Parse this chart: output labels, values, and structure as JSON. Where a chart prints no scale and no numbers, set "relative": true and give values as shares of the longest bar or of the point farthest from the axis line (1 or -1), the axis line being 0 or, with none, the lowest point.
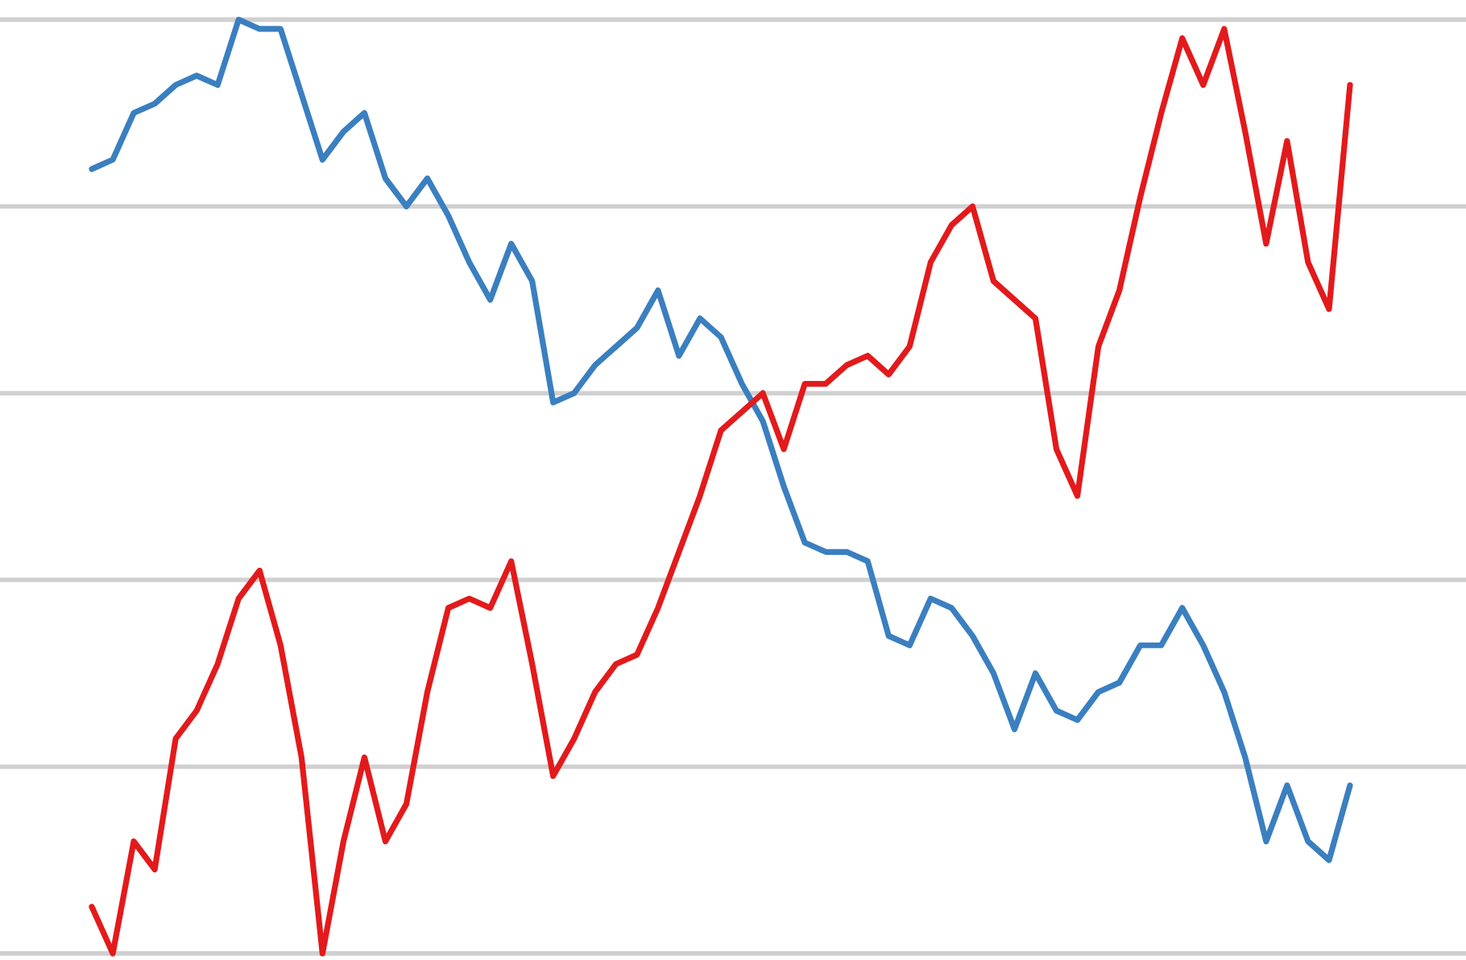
{
  "chart_data": {
    "type": "line",
    "relative": true,
    "grid": "y",
    "legend": false,
    "categories": [
      null,
      null,
      null,
      null,
      null,
      null,
      null,
      null,
      null,
      null,
      null,
      null,
      null,
      null,
      null,
      null,
      null,
      null,
      null,
      null,
      null,
      null,
      null,
      null,
      null,
      null,
      null,
      null,
      null,
      null,
      null,
      null,
      null,
      null,
      null,
      null,
      null,
      null,
      null,
      null,
      null,
      null,
      null,
      null,
      null,
      null,
      null,
      null,
      null,
      null,
      null,
      null,
      null,
      null,
      null,
      null,
      null,
      null,
      null,
      null,
      null
    ],
    "series": [
      {
        "color": "#3a7fc0",
        "values": [
          0.84,
          0.85,
          0.9,
          0.91,
          0.93,
          0.94,
          0.93,
          1.0,
          0.99,
          0.99,
          0.92,
          0.85,
          0.88,
          0.9,
          0.83,
          0.8,
          0.83,
          0.79,
          0.74,
          0.7,
          0.76,
          0.72,
          0.59,
          0.6,
          0.63,
          0.65,
          0.67,
          0.71,
          0.64,
          0.68,
          0.66,
          0.61,
          0.57,
          0.5,
          0.44,
          0.43,
          0.43,
          0.42,
          0.34,
          0.33,
          0.38,
          0.37,
          0.34,
          0.3,
          0.24,
          0.3,
          0.26,
          0.25,
          0.28,
          0.29,
          0.33,
          0.33,
          0.37,
          0.33,
          0.28,
          0.21,
          0.12,
          0.18,
          0.12,
          0.1,
          0.18
        ]
      },
      {
        "color": "#e31a1c",
        "values": [
          0.05,
          0.0,
          0.12,
          0.09,
          0.23,
          0.26,
          0.31,
          0.38,
          0.41,
          0.33,
          0.21,
          0.0,
          0.12,
          0.21,
          0.12,
          0.16,
          0.28,
          0.37,
          0.38,
          0.37,
          0.42,
          0.31,
          0.19,
          0.23,
          0.28,
          0.31,
          0.32,
          0.37,
          0.43,
          0.49,
          0.56,
          0.58,
          0.6,
          0.54,
          0.61,
          0.61,
          0.63,
          0.64,
          0.62,
          0.65,
          0.74,
          0.78,
          0.8,
          0.72,
          0.7,
          0.68,
          0.54,
          0.49,
          0.65,
          0.71,
          0.81,
          0.9,
          0.98,
          0.93,
          0.99,
          0.88,
          0.76,
          0.87,
          0.74,
          0.69,
          0.93
        ]
      }
    ]
  }
}
